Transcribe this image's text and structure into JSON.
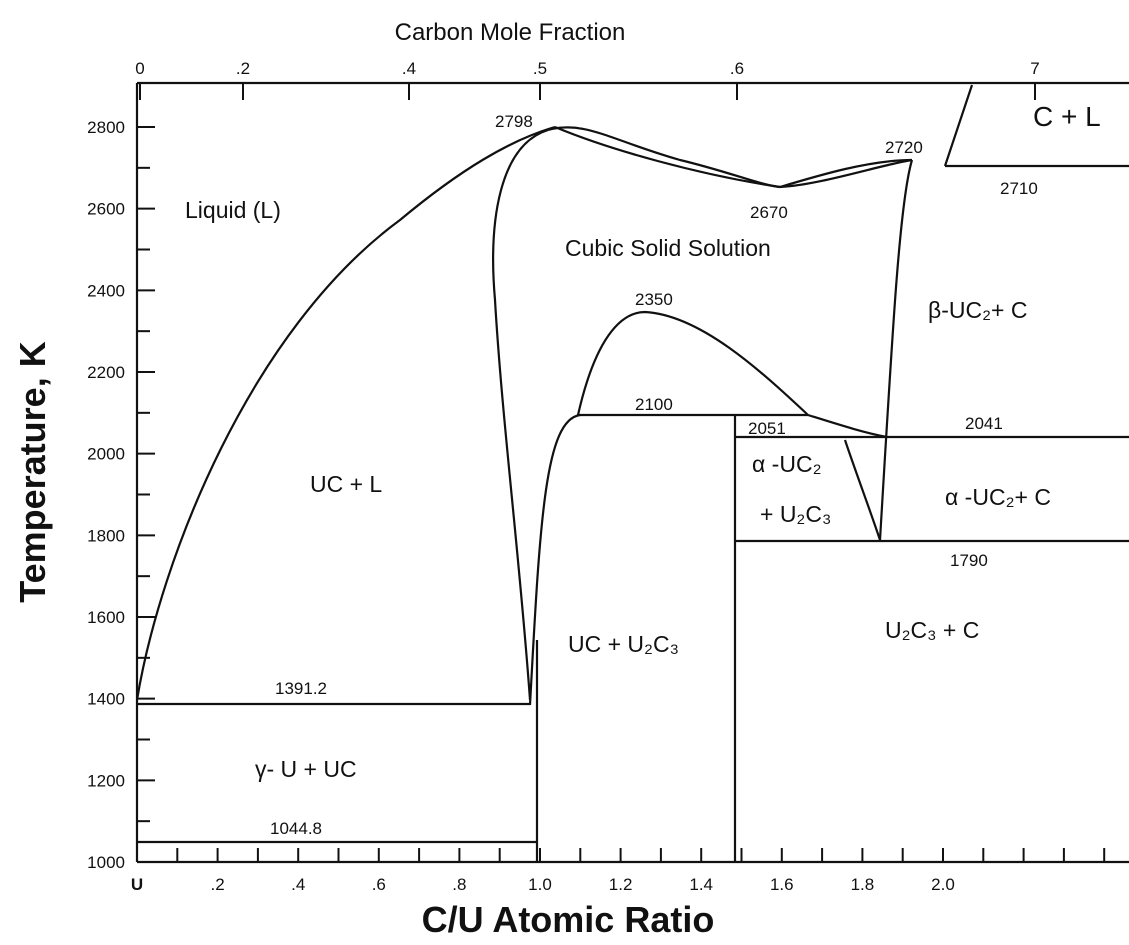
{
  "title": "Carbon Mole Fraction",
  "y_axis": {
    "label": "Temperature, K",
    "ticks": [
      "1000",
      "1200",
      "1400",
      "1600",
      "1800",
      "2000",
      "2200",
      "2400",
      "2600",
      "2800"
    ]
  },
  "x_axis": {
    "label": "C/U Atomic Ratio",
    "ticks": [
      "U",
      ".2",
      ".4",
      ".6",
      ".8",
      "1.0",
      "1.2",
      "1.4",
      "1.6",
      "1.8",
      "2.0"
    ]
  },
  "top_axis": {
    "ticks": [
      "0",
      ".2",
      ".4",
      ".5",
      ".6",
      "7"
    ]
  },
  "regions": [
    "Liquid (L)",
    "Cubic Solid Solution",
    "UC + L",
    "β-UC₂+ C",
    "α -UC₂",
    "+ U₂C₃",
    "α -UC₂+ C",
    "UC + U₂C₃",
    "U₂C₃ + C",
    "γ- U + UC",
    "C + L"
  ],
  "annotations": [
    "2798",
    "2720",
    "2670",
    "2710",
    "2350",
    "2100",
    "2051",
    "2041",
    "1790",
    "1391.2",
    "1044.8"
  ]
}
